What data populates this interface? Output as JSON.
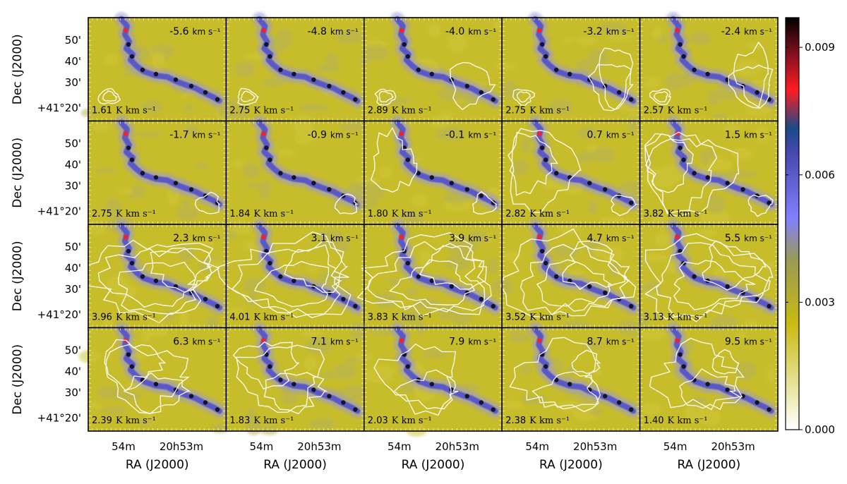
{
  "chart_data": {
    "type": "heatmap",
    "layout": {
      "rows": 4,
      "cols": 5
    },
    "xlabel": "RA (J2000)",
    "ylabel": "Dec (J2000)",
    "x_ticks": [
      "54m",
      "20h53m"
    ],
    "y_ticks": [
      "50'",
      "40'",
      "30'",
      "+41°20'"
    ],
    "panels": [
      {
        "velocity": "-5.6",
        "velocity_unit": "km s⁻¹",
        "integrated": "1.61",
        "integrated_unit": "K km s⁻¹"
      },
      {
        "velocity": "-4.8",
        "velocity_unit": "km s⁻¹",
        "integrated": "2.75",
        "integrated_unit": "K km s⁻¹"
      },
      {
        "velocity": "-4.0",
        "velocity_unit": "km s⁻¹",
        "integrated": "2.89",
        "integrated_unit": "K km s⁻¹"
      },
      {
        "velocity": "-3.2",
        "velocity_unit": "km s⁻¹",
        "integrated": "2.75",
        "integrated_unit": "K km s⁻¹"
      },
      {
        "velocity": "-2.4",
        "velocity_unit": "km s⁻¹",
        "integrated": "2.57",
        "integrated_unit": "K km s⁻¹"
      },
      {
        "velocity": "-1.7",
        "velocity_unit": "km s⁻¹",
        "integrated": "2.75",
        "integrated_unit": "K km s⁻¹"
      },
      {
        "velocity": "-0.9",
        "velocity_unit": "km s⁻¹",
        "integrated": "1.84",
        "integrated_unit": "K km s⁻¹"
      },
      {
        "velocity": "-0.1",
        "velocity_unit": "km s⁻¹",
        "integrated": "1.80",
        "integrated_unit": "K km s⁻¹"
      },
      {
        "velocity": "0.7",
        "velocity_unit": "km s⁻¹",
        "integrated": "2.82",
        "integrated_unit": "K km s⁻¹"
      },
      {
        "velocity": "1.5",
        "velocity_unit": "km s⁻¹",
        "integrated": "3.82",
        "integrated_unit": "K km s⁻¹"
      },
      {
        "velocity": "2.3",
        "velocity_unit": "km s⁻¹",
        "integrated": "3.96",
        "integrated_unit": "K km s⁻¹"
      },
      {
        "velocity": "3.1",
        "velocity_unit": "km s⁻¹",
        "integrated": "4.01",
        "integrated_unit": "K km s⁻¹"
      },
      {
        "velocity": "3.9",
        "velocity_unit": "km s⁻¹",
        "integrated": "3.83",
        "integrated_unit": "K km s⁻¹"
      },
      {
        "velocity": "4.7",
        "velocity_unit": "km s⁻¹",
        "integrated": "3.52",
        "integrated_unit": "K km s⁻¹"
      },
      {
        "velocity": "5.5",
        "velocity_unit": "km s⁻¹",
        "integrated": "3.13",
        "integrated_unit": "K km s⁻¹"
      },
      {
        "velocity": "6.3",
        "velocity_unit": "km s⁻¹",
        "integrated": "2.39",
        "integrated_unit": "K km s⁻¹"
      },
      {
        "velocity": "7.1",
        "velocity_unit": "km s⁻¹",
        "integrated": "1.83",
        "integrated_unit": "K km s⁻¹"
      },
      {
        "velocity": "7.9",
        "velocity_unit": "km s⁻¹",
        "integrated": "2.03",
        "integrated_unit": "K km s⁻¹"
      },
      {
        "velocity": "8.7",
        "velocity_unit": "km s⁻¹",
        "integrated": "2.38",
        "integrated_unit": "K km s⁻¹"
      },
      {
        "velocity": "9.5",
        "velocity_unit": "km s⁻¹",
        "integrated": "1.40",
        "integrated_unit": "K km s⁻¹"
      }
    ],
    "colorbar": {
      "range": [
        0.0,
        0.0097
      ],
      "ticks": [
        {
          "value": 0.0,
          "label": "0.000"
        },
        {
          "value": 0.003,
          "label": "0.003"
        },
        {
          "value": 0.006,
          "label": "0.006"
        },
        {
          "value": 0.009,
          "label": "0.009"
        }
      ],
      "colormap_stops": [
        {
          "value": 0.0,
          "color": "#ffffff"
        },
        {
          "value": 0.0025,
          "color": "#c8bb10"
        },
        {
          "value": 0.004,
          "color": "#9a9a58"
        },
        {
          "value": 0.005,
          "color": "#8080ff"
        },
        {
          "value": 0.0065,
          "color": "#4848b0"
        },
        {
          "value": 0.0071,
          "color": "#1a4a86"
        },
        {
          "value": 0.008,
          "color": "#ff1c22"
        },
        {
          "value": 0.0088,
          "color": "#8a1020"
        },
        {
          "value": 0.0097,
          "color": "#000000"
        }
      ]
    },
    "colors": {
      "background_emission": "#c7bd2a",
      "filament": "#5a58c8",
      "contours": "#ffffff"
    }
  }
}
